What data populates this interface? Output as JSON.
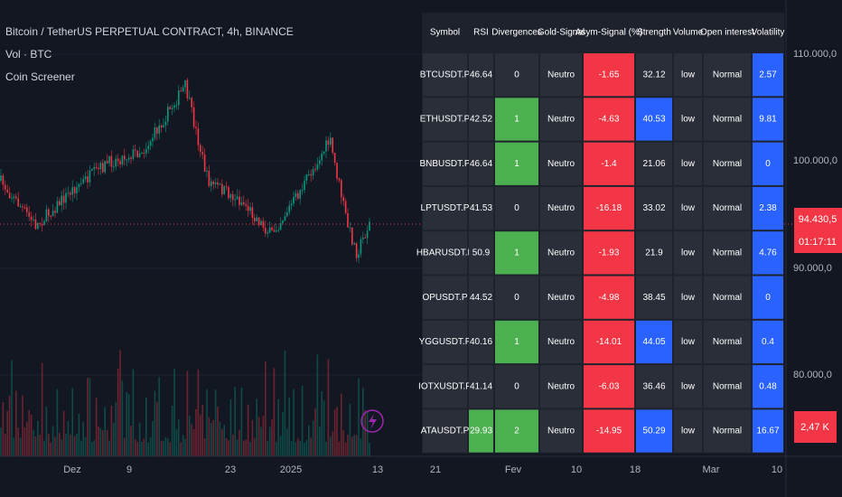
{
  "header": {
    "title": "Bitcoin / TetherUS PERPETUAL CONTRACT, 4h, BINANCE",
    "volume_indicator": "Vol · BTC",
    "indicator": "Coin Screener"
  },
  "price_axis": {
    "labels": [
      "110.000,0",
      "100.000,0",
      "90.000,0",
      "80.000,0"
    ],
    "last_price": "94.430,5",
    "countdown": "01:17:11",
    "volume_tag": "2,47 K"
  },
  "time_axis": {
    "labels": [
      "Dez",
      "9",
      "23",
      "2025",
      "13",
      "21",
      "Fev",
      "10",
      "18",
      "Mar",
      "10"
    ]
  },
  "table": {
    "columns": [
      "Symbol",
      "RSI",
      "Divergences",
      "Gold-Signal",
      "Asym-Signal (%)",
      "Strength",
      "Volume",
      "Open interest",
      "Volatility"
    ],
    "rows": [
      [
        "BTCUSDT.P",
        "46.64",
        "0",
        "Neutro",
        "-1.65",
        "32.12",
        "low",
        "Normal",
        "2.57"
      ],
      [
        "ETHUSDT.P",
        "42.52",
        "1",
        "Neutro",
        "-4.63",
        "40.53",
        "low",
        "Normal",
        "9.81"
      ],
      [
        "BNBUSDT.P",
        "46.64",
        "1",
        "Neutro",
        "-1.4",
        "21.06",
        "low",
        "Normal",
        "0"
      ],
      [
        "LPTUSDT.P",
        "41.53",
        "0",
        "Neutro",
        "-16.18",
        "33.02",
        "low",
        "Normal",
        "2.38"
      ],
      [
        "HBARUSDT.P",
        "50.9",
        "1",
        "Neutro",
        "-1.93",
        "21.9",
        "low",
        "Normal",
        "4.76"
      ],
      [
        "OPUSDT.P",
        "44.52",
        "0",
        "Neutro",
        "-4.98",
        "38.45",
        "low",
        "Normal",
        "0"
      ],
      [
        "YGGUSDT.P",
        "40.16",
        "1",
        "Neutro",
        "-14.01",
        "44.05",
        "low",
        "Normal",
        "0.4"
      ],
      [
        "IOTXUSDT.P",
        "41.14",
        "0",
        "Neutro",
        "-6.03",
        "36.46",
        "low",
        "Normal",
        "0.48"
      ],
      [
        "ATAUSDT.P",
        "29.93",
        "2",
        "Neutro",
        "-14.95",
        "50.29",
        "low",
        "Normal",
        "16.67"
      ]
    ],
    "row_colors": [
      [
        null,
        null,
        null,
        null,
        "#f23645",
        null,
        null,
        null,
        "#2962ff"
      ],
      [
        null,
        null,
        "#4caf50",
        null,
        "#f23645",
        "#2962ff",
        null,
        null,
        "#2962ff"
      ],
      [
        null,
        null,
        "#4caf50",
        null,
        "#f23645",
        null,
        null,
        null,
        "#2962ff"
      ],
      [
        null,
        null,
        null,
        null,
        "#f23645",
        null,
        null,
        null,
        "#2962ff"
      ],
      [
        null,
        null,
        "#4caf50",
        null,
        "#f23645",
        null,
        null,
        null,
        "#2962ff"
      ],
      [
        null,
        null,
        null,
        null,
        "#f23645",
        null,
        null,
        null,
        "#2962ff"
      ],
      [
        null,
        null,
        "#4caf50",
        null,
        "#f23645",
        "#2962ff",
        null,
        null,
        "#2962ff"
      ],
      [
        null,
        null,
        null,
        null,
        "#f23645",
        null,
        null,
        null,
        "#2962ff"
      ],
      [
        null,
        "#4caf50",
        "#4caf50",
        null,
        "#f23645",
        "#2962ff",
        null,
        null,
        "#2962ff"
      ]
    ]
  }
}
